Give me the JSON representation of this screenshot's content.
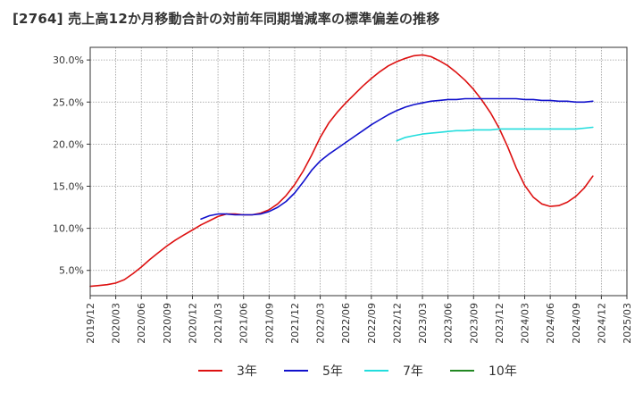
{
  "chart_data": {
    "type": "line",
    "title": "[2764]  売上高12か月移動合計の対前年同期増減率の標準偏差の推移",
    "x_ticks": [
      "2019/12",
      "2020/03",
      "2020/06",
      "2020/09",
      "2020/12",
      "2021/03",
      "2021/06",
      "2021/09",
      "2021/12",
      "2022/03",
      "2022/06",
      "2022/09",
      "2022/12",
      "2023/03",
      "2023/06",
      "2023/09",
      "2023/12",
      "2024/03",
      "2024/06",
      "2024/09",
      "2024/12",
      "2025/03"
    ],
    "xlim": [
      "2019/12",
      "2025/03"
    ],
    "y_ticks": [
      "5.0%",
      "10.0%",
      "15.0%",
      "20.0%",
      "25.0%",
      "30.0%"
    ],
    "ylim": [
      2.0,
      31.5
    ],
    "grid": true,
    "legend_position": "bottom",
    "series": [
      {
        "name": "3年",
        "color": "#dd1111",
        "points": [
          [
            "2019/12",
            3.1
          ],
          [
            "2020/01",
            3.2
          ],
          [
            "2020/02",
            3.3
          ],
          [
            "2020/03",
            3.5
          ],
          [
            "2020/04",
            3.9
          ],
          [
            "2020/05",
            4.6
          ],
          [
            "2020/06",
            5.4
          ],
          [
            "2020/07",
            6.3
          ],
          [
            "2020/08",
            7.1
          ],
          [
            "2020/09",
            7.9
          ],
          [
            "2020/10",
            8.6
          ],
          [
            "2020/11",
            9.2
          ],
          [
            "2020/12",
            9.8
          ],
          [
            "2021/01",
            10.4
          ],
          [
            "2021/02",
            10.9
          ],
          [
            "2021/03",
            11.4
          ],
          [
            "2021/04",
            11.7
          ],
          [
            "2021/05",
            11.7
          ],
          [
            "2021/06",
            11.6
          ],
          [
            "2021/07",
            11.6
          ],
          [
            "2021/08",
            11.8
          ],
          [
            "2021/09",
            12.2
          ],
          [
            "2021/10",
            12.9
          ],
          [
            "2021/11",
            13.9
          ],
          [
            "2021/12",
            15.2
          ],
          [
            "2022/01",
            16.8
          ],
          [
            "2022/02",
            18.7
          ],
          [
            "2022/03",
            20.8
          ],
          [
            "2022/04",
            22.5
          ],
          [
            "2022/05",
            23.8
          ],
          [
            "2022/06",
            24.9
          ],
          [
            "2022/07",
            25.9
          ],
          [
            "2022/08",
            26.9
          ],
          [
            "2022/09",
            27.8
          ],
          [
            "2022/10",
            28.6
          ],
          [
            "2022/11",
            29.3
          ],
          [
            "2022/12",
            29.8
          ],
          [
            "2023/01",
            30.2
          ],
          [
            "2023/02",
            30.5
          ],
          [
            "2023/03",
            30.6
          ],
          [
            "2023/04",
            30.4
          ],
          [
            "2023/05",
            29.9
          ],
          [
            "2023/06",
            29.3
          ],
          [
            "2023/07",
            28.5
          ],
          [
            "2023/08",
            27.6
          ],
          [
            "2023/09",
            26.5
          ],
          [
            "2023/10",
            25.2
          ],
          [
            "2023/11",
            23.7
          ],
          [
            "2023/12",
            21.9
          ],
          [
            "2024/01",
            19.7
          ],
          [
            "2024/02",
            17.2
          ],
          [
            "2024/03",
            15.1
          ],
          [
            "2024/04",
            13.7
          ],
          [
            "2024/05",
            12.9
          ],
          [
            "2024/06",
            12.6
          ],
          [
            "2024/07",
            12.7
          ],
          [
            "2024/08",
            13.1
          ],
          [
            "2024/09",
            13.8
          ],
          [
            "2024/10",
            14.8
          ],
          [
            "2024/11",
            16.2
          ]
        ]
      },
      {
        "name": "5年",
        "color": "#1111cc",
        "points": [
          [
            "2021/01",
            11.1
          ],
          [
            "2021/02",
            11.5
          ],
          [
            "2021/03",
            11.7
          ],
          [
            "2021/04",
            11.7
          ],
          [
            "2021/05",
            11.6
          ],
          [
            "2021/06",
            11.6
          ],
          [
            "2021/07",
            11.6
          ],
          [
            "2021/08",
            11.7
          ],
          [
            "2021/09",
            12.0
          ],
          [
            "2021/10",
            12.5
          ],
          [
            "2021/11",
            13.2
          ],
          [
            "2021/12",
            14.2
          ],
          [
            "2022/01",
            15.5
          ],
          [
            "2022/02",
            16.9
          ],
          [
            "2022/03",
            18.0
          ],
          [
            "2022/04",
            18.8
          ],
          [
            "2022/05",
            19.5
          ],
          [
            "2022/06",
            20.2
          ],
          [
            "2022/07",
            20.9
          ],
          [
            "2022/08",
            21.6
          ],
          [
            "2022/09",
            22.3
          ],
          [
            "2022/10",
            22.9
          ],
          [
            "2022/11",
            23.5
          ],
          [
            "2022/12",
            24.0
          ],
          [
            "2023/01",
            24.4
          ],
          [
            "2023/02",
            24.7
          ],
          [
            "2023/03",
            24.9
          ],
          [
            "2023/04",
            25.1
          ],
          [
            "2023/05",
            25.2
          ],
          [
            "2023/06",
            25.3
          ],
          [
            "2023/07",
            25.3
          ],
          [
            "2023/08",
            25.4
          ],
          [
            "2023/09",
            25.4
          ],
          [
            "2023/10",
            25.4
          ],
          [
            "2023/11",
            25.4
          ],
          [
            "2023/12",
            25.4
          ],
          [
            "2024/01",
            25.4
          ],
          [
            "2024/02",
            25.4
          ],
          [
            "2024/03",
            25.3
          ],
          [
            "2024/04",
            25.3
          ],
          [
            "2024/05",
            25.2
          ],
          [
            "2024/06",
            25.2
          ],
          [
            "2024/07",
            25.1
          ],
          [
            "2024/08",
            25.1
          ],
          [
            "2024/09",
            25.0
          ],
          [
            "2024/10",
            25.0
          ],
          [
            "2024/11",
            25.1
          ]
        ]
      },
      {
        "name": "7年",
        "color": "#22dddd",
        "points": [
          [
            "2022/12",
            20.4
          ],
          [
            "2023/01",
            20.8
          ],
          [
            "2023/02",
            21.0
          ],
          [
            "2023/03",
            21.2
          ],
          [
            "2023/04",
            21.3
          ],
          [
            "2023/05",
            21.4
          ],
          [
            "2023/06",
            21.5
          ],
          [
            "2023/07",
            21.6
          ],
          [
            "2023/08",
            21.6
          ],
          [
            "2023/09",
            21.7
          ],
          [
            "2023/10",
            21.7
          ],
          [
            "2023/11",
            21.7
          ],
          [
            "2023/12",
            21.8
          ],
          [
            "2024/01",
            21.8
          ],
          [
            "2024/02",
            21.8
          ],
          [
            "2024/03",
            21.8
          ],
          [
            "2024/04",
            21.8
          ],
          [
            "2024/05",
            21.8
          ],
          [
            "2024/06",
            21.8
          ],
          [
            "2024/07",
            21.8
          ],
          [
            "2024/08",
            21.8
          ],
          [
            "2024/09",
            21.8
          ],
          [
            "2024/10",
            21.9
          ],
          [
            "2024/11",
            22.0
          ]
        ]
      },
      {
        "name": "10年",
        "color": "#228822",
        "points": []
      }
    ]
  }
}
